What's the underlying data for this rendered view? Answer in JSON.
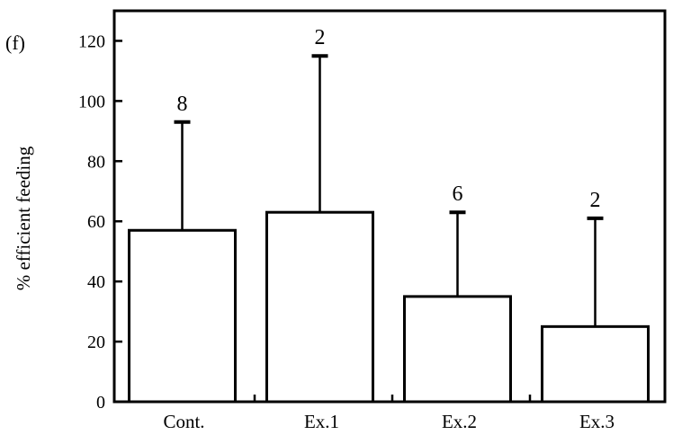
{
  "chart_data": {
    "type": "bar",
    "panel_label": "(f)",
    "title": "",
    "xlabel": "",
    "ylabel": "% efficient feeding",
    "ylim": [
      0,
      130
    ],
    "yticks": [
      0,
      20,
      40,
      60,
      80,
      100,
      120
    ],
    "grid": false,
    "categories": [
      "Cont.",
      "Ex.1",
      "Ex.2",
      "Ex.3"
    ],
    "values": [
      57,
      63,
      35,
      25
    ],
    "error_upper": [
      93,
      115,
      63,
      61
    ],
    "n_labels": [
      "8",
      "2",
      "6",
      "2"
    ],
    "colors": {
      "bar_fill": "#ffffff",
      "stroke": "#000000"
    }
  }
}
